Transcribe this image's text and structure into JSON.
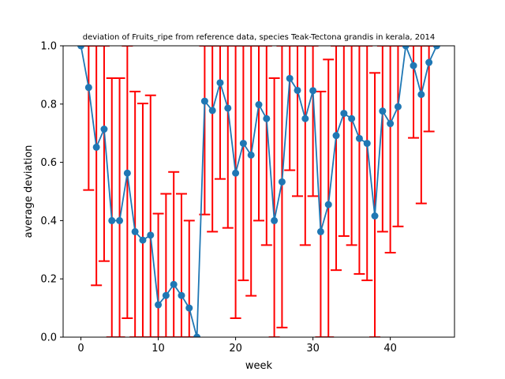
{
  "chart_data": {
    "type": "line",
    "title": "deviation of Fruits_ripe from reference data, species Teak-Tectona grandis in kerala, 2014",
    "xlabel": "week",
    "ylabel": "average deviation",
    "xlim": [
      -2.3,
      48.3
    ],
    "ylim": [
      0,
      1
    ],
    "xticks": [
      0,
      10,
      20,
      30,
      40
    ],
    "yticks": [
      0.0,
      0.2,
      0.4,
      0.6,
      0.8,
      1.0
    ],
    "xtick_labels": [
      "0",
      "10",
      "20",
      "30",
      "40"
    ],
    "ytick_labels": [
      "0.0",
      "0.2",
      "0.4",
      "0.6",
      "0.8",
      "1.0"
    ],
    "grid": false,
    "series": [
      {
        "color": "#1f77b4",
        "error_color": "#ff0000",
        "x": [
          0,
          1,
          2,
          3,
          4,
          5,
          6,
          7,
          8,
          9,
          10,
          11,
          12,
          13,
          14,
          15,
          16,
          17,
          18,
          19,
          20,
          21,
          22,
          23,
          24,
          25,
          26,
          27,
          28,
          29,
          30,
          31,
          32,
          33,
          34,
          35,
          36,
          37,
          38,
          39,
          40,
          41,
          42,
          43,
          44,
          45,
          46
        ],
        "y": [
          1.0,
          0.857,
          0.652,
          0.714,
          0.4,
          0.4,
          0.563,
          0.362,
          0.333,
          0.35,
          0.111,
          0.143,
          0.181,
          0.143,
          0.1,
          0.0,
          0.81,
          0.778,
          0.873,
          0.786,
          0.563,
          0.665,
          0.625,
          0.798,
          0.75,
          0.4,
          0.533,
          0.888,
          0.847,
          0.75,
          0.846,
          0.362,
          0.455,
          0.692,
          0.768,
          0.75,
          0.682,
          0.665,
          0.416,
          0.776,
          0.733,
          0.791,
          1.0,
          0.932,
          0.833,
          0.943,
          1.0
        ],
        "err_low": [
          1.0,
          0.505,
          0.178,
          0.261,
          0.0,
          0.0,
          0.065,
          0.0,
          0.0,
          0.0,
          0.0,
          0.0,
          0.0,
          0.0,
          0.0,
          0.0,
          0.421,
          0.362,
          0.543,
          0.375,
          0.065,
          0.195,
          0.142,
          0.4,
          0.316,
          0.0,
          0.033,
          0.573,
          0.484,
          0.316,
          0.484,
          0.0,
          0.0,
          0.23,
          0.347,
          0.316,
          0.217,
          0.195,
          0.0,
          0.362,
          0.29,
          0.38,
          1.0,
          0.684,
          0.459,
          0.706,
          1.0
        ],
        "err_high": [
          1.0,
          1.0,
          1.0,
          1.0,
          0.889,
          0.889,
          1.0,
          0.843,
          0.802,
          0.83,
          0.424,
          0.492,
          0.567,
          0.492,
          0.4,
          0.0,
          1.0,
          1.0,
          1.0,
          1.0,
          1.0,
          1.0,
          1.0,
          1.0,
          1.0,
          0.889,
          1.0,
          1.0,
          1.0,
          1.0,
          1.0,
          0.843,
          0.953,
          1.0,
          1.0,
          1.0,
          1.0,
          1.0,
          0.907,
          1.0,
          1.0,
          1.0,
          1.0,
          1.0,
          1.0,
          1.0,
          1.0
        ]
      }
    ]
  }
}
